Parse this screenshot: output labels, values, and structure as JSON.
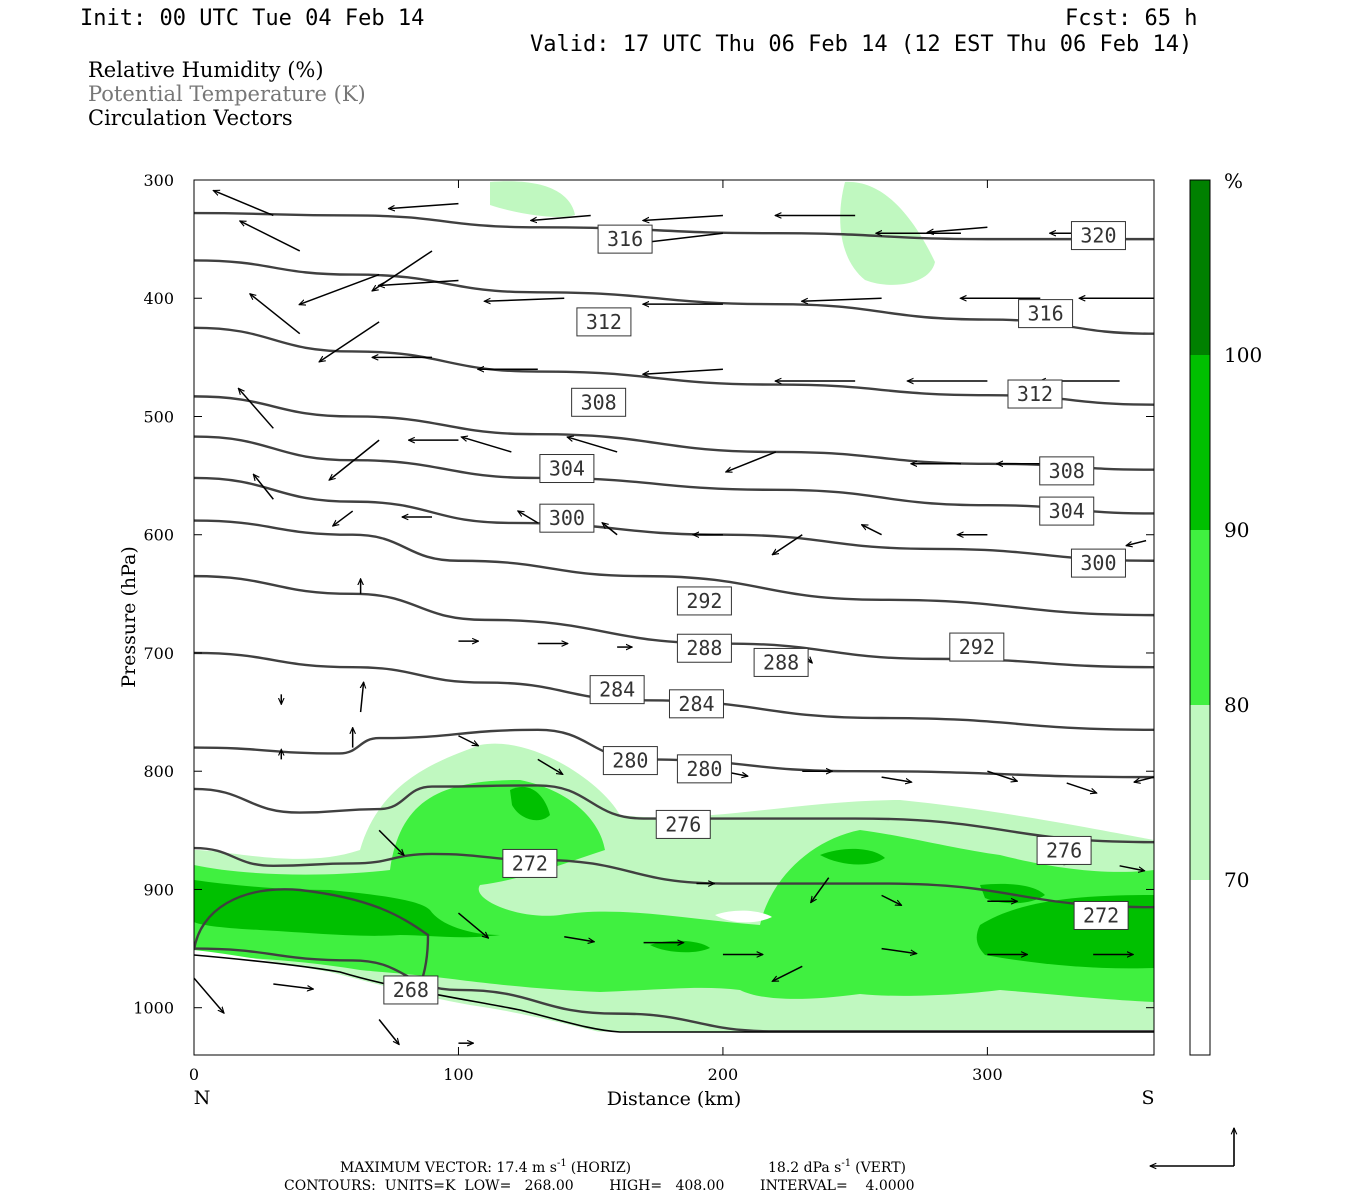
{
  "header": {
    "init": "Init: 00 UTC Tue 04 Feb 14",
    "fcst": "Fcst:   65 h",
    "valid": "Valid: 17 UTC Thu 06 Feb 14 (12 EST Thu 06 Feb 14)"
  },
  "legend": {
    "rh": "Relative Humidity (%)",
    "theta": "Potential Temperature (K)",
    "vectors": "Circulation Vectors"
  },
  "colors": {
    "rh_70": "#c0f8c0",
    "rh_80": "#40f040",
    "rh_90": "#00c000",
    "rh_100": "#008000",
    "contour": "#404040"
  },
  "footer": {
    "max_vector": "MAXIMUM VECTOR:  17.4 m s",
    "horiz_unit": "(HORIZ)",
    "vert_value": "18.2 dPa s",
    "vert_unit": "(VERT)",
    "exp": "-1",
    "contours": "CONTOURS:  UNITS=K  LOW=   268.00        HIGH=   408.00        INTERVAL=    4.0000"
  },
  "chart_data": {
    "type": "cross-section",
    "xlabel": "Distance (km)",
    "ylabel": "Pressure (hPa)",
    "xlim": [
      0,
      363
    ],
    "ylim": [
      1040,
      300
    ],
    "x_ticks": [
      0,
      100,
      200,
      300
    ],
    "y_ticks": [
      300,
      400,
      500,
      600,
      700,
      800,
      900,
      1000
    ],
    "x_end_labels": {
      "left": "N",
      "right": "S"
    },
    "colorbar": {
      "unit": "%",
      "levels": [
        70,
        80,
        90,
        100
      ],
      "colors": [
        "#ffffff",
        "#c0f8c0",
        "#40f040",
        "#00c000",
        "#008000"
      ]
    },
    "theta_levels": [
      268,
      272,
      276,
      280,
      284,
      288,
      292,
      300,
      304,
      308,
      312,
      316,
      320
    ],
    "contour_labels": [
      {
        "text": "268",
        "x": 82,
        "p": 985
      },
      {
        "text": "272",
        "x": 127,
        "p": 878
      },
      {
        "text": "272",
        "x": 343,
        "p": 922
      },
      {
        "text": "276",
        "x": 185,
        "p": 845
      },
      {
        "text": "276",
        "x": 329,
        "p": 867
      },
      {
        "text": "280",
        "x": 165,
        "p": 791
      },
      {
        "text": "280",
        "x": 193,
        "p": 798
      },
      {
        "text": "284",
        "x": 160,
        "p": 731
      },
      {
        "text": "284",
        "x": 190,
        "p": 743
      },
      {
        "text": "288",
        "x": 193,
        "p": 696
      },
      {
        "text": "288",
        "x": 222,
        "p": 708
      },
      {
        "text": "292",
        "x": 193,
        "p": 656
      },
      {
        "text": "292",
        "x": 296,
        "p": 695
      },
      {
        "text": "300",
        "x": 141,
        "p": 586
      },
      {
        "text": "300",
        "x": 342,
        "p": 624
      },
      {
        "text": "304",
        "x": 141,
        "p": 544
      },
      {
        "text": "304",
        "x": 330,
        "p": 580
      },
      {
        "text": "308",
        "x": 153,
        "p": 488
      },
      {
        "text": "308",
        "x": 330,
        "p": 546
      },
      {
        "text": "312",
        "x": 155,
        "p": 420
      },
      {
        "text": "312",
        "x": 318,
        "p": 481
      },
      {
        "text": "316",
        "x": 163,
        "p": 350
      },
      {
        "text": "316",
        "x": 322,
        "p": 413
      },
      {
        "text": "320",
        "x": 342,
        "p": 347
      }
    ],
    "max_vector": {
      "horiz": "17.4 m s-1",
      "vert": "18.2 dPa s-1"
    }
  }
}
